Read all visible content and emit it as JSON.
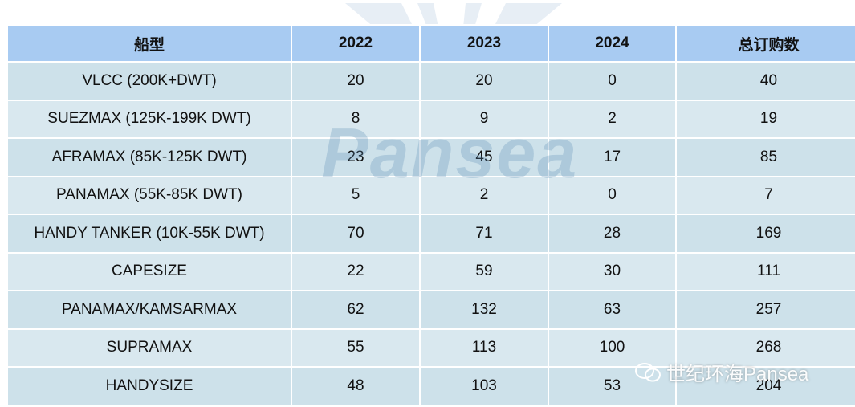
{
  "table": {
    "header": [
      "船型",
      "2022",
      "2023",
      "2024",
      "总订购数"
    ],
    "rows": [
      [
        "VLCC (200K+DWT)",
        20,
        20,
        0,
        40
      ],
      [
        "SUEZMAX (125K-199K DWT)",
        8,
        9,
        2,
        19
      ],
      [
        "AFRAMAX (85K-125K DWT)",
        23,
        45,
        17,
        85
      ],
      [
        "PANAMAX (55K-85K DWT)",
        5,
        2,
        0,
        7
      ],
      [
        "HANDY TANKER (10K-55K DWT)",
        70,
        71,
        28,
        169
      ],
      [
        "CAPESIZE",
        22,
        59,
        30,
        111
      ],
      [
        "PANAMAX/KAMSARMAX",
        62,
        132,
        63,
        257
      ],
      [
        "SUPRAMAX",
        55,
        113,
        100,
        268
      ],
      [
        "HANDYSIZE",
        48,
        103,
        53,
        204
      ]
    ]
  },
  "watermark": {
    "brand": "Pansea",
    "account": "世纪环海Pansea"
  }
}
